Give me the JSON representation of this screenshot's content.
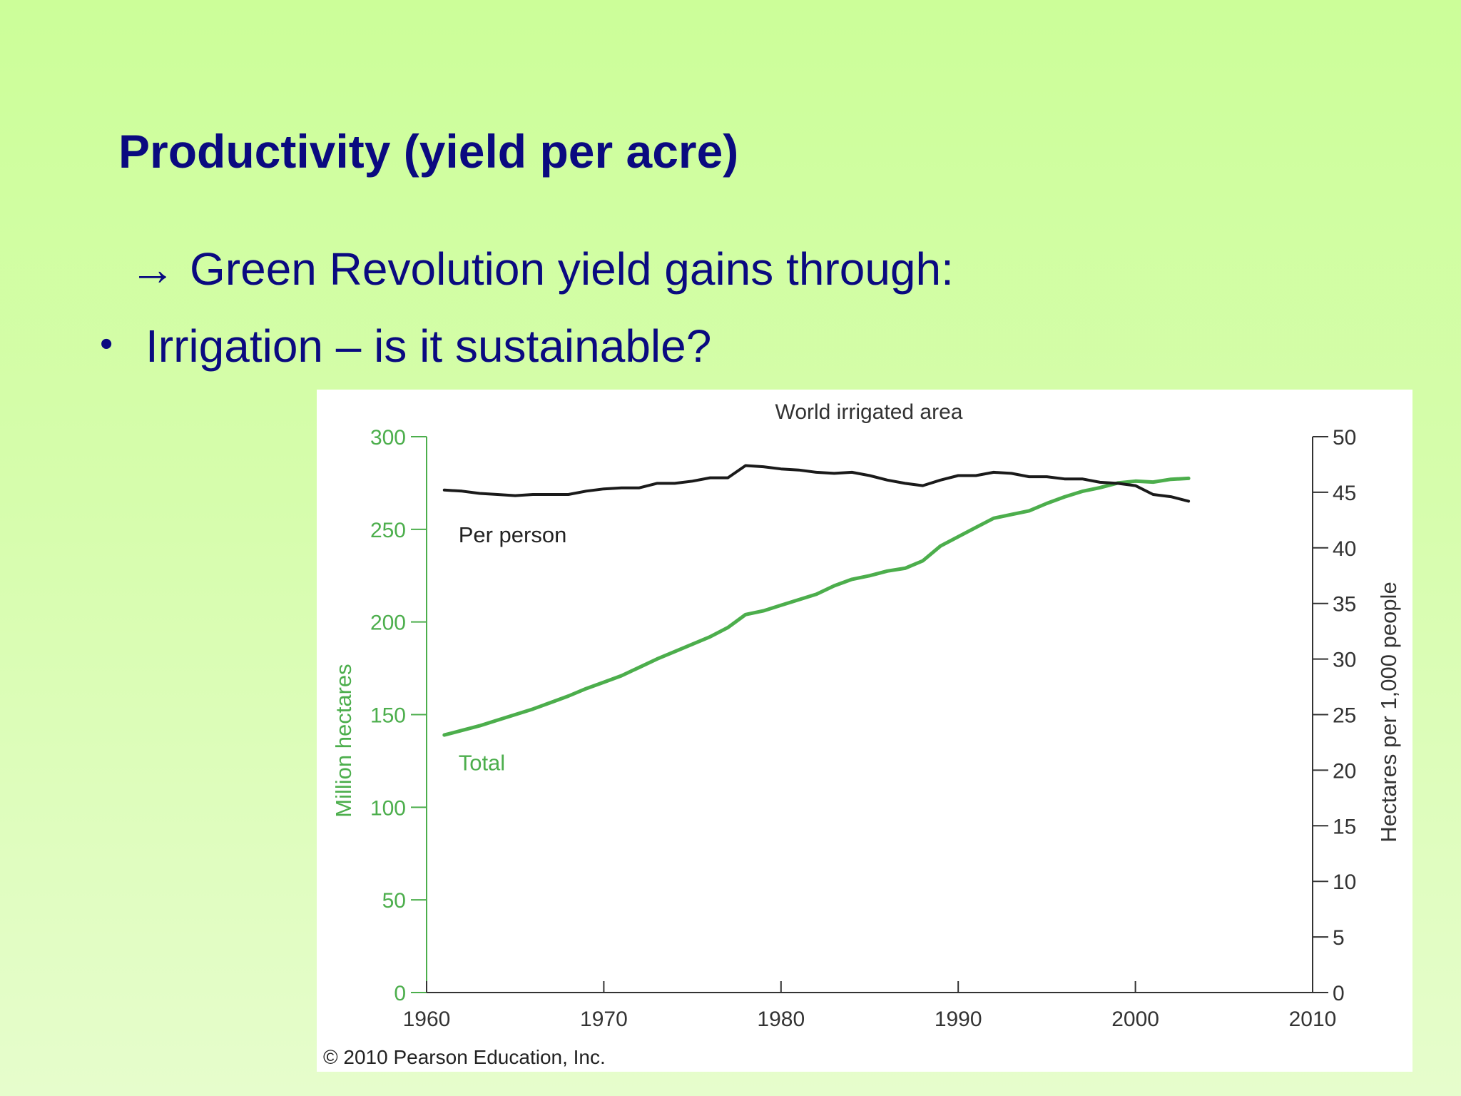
{
  "slide": {
    "title": "Productivity (yield per acre)",
    "arrow_symbol": "→",
    "arrow_text": "Green Revolution yield gains through:",
    "bullet_symbol": "•",
    "bullet_text": "Irrigation – is it sustainable?"
  },
  "chart_data": {
    "type": "line",
    "title": "World irrigated area",
    "credit": "© 2010 Pearson Education, Inc.",
    "xlim": [
      1960,
      2010
    ],
    "x_ticks": [
      1960,
      1970,
      1980,
      1990,
      2000,
      2010
    ],
    "y_left": {
      "label": "Million hectares",
      "lim": [
        0,
        300
      ],
      "ticks": [
        0,
        50,
        100,
        150,
        200,
        250,
        300
      ],
      "color": "#4cae4c"
    },
    "y_right": {
      "label": "Hectares per 1,000 people",
      "lim": [
        0,
        50
      ],
      "ticks": [
        0,
        5,
        10,
        15,
        20,
        25,
        30,
        35,
        40,
        45,
        50
      ],
      "color": "#333333"
    },
    "series": [
      {
        "name": "Total",
        "axis": "left",
        "color": "#4cae4c",
        "label_at": [
          1961.8,
          120
        ],
        "x": [
          1961,
          1962,
          1963,
          1964,
          1965,
          1966,
          1967,
          1968,
          1969,
          1970,
          1971,
          1972,
          1973,
          1974,
          1975,
          1976,
          1977,
          1978,
          1979,
          1980,
          1981,
          1982,
          1983,
          1984,
          1985,
          1986,
          1987,
          1988,
          1989,
          1990,
          1991,
          1992,
          1993,
          1994,
          1995,
          1996,
          1997,
          1998,
          1999,
          2000,
          2001,
          2002,
          2003
        ],
        "y": [
          139,
          141.5,
          144,
          147,
          150,
          153,
          156.5,
          160,
          164,
          167.5,
          171,
          175.5,
          180,
          184,
          188,
          192,
          197,
          204,
          206,
          209,
          212,
          215,
          219.5,
          223,
          225,
          227.5,
          229,
          233,
          241,
          246,
          251,
          256,
          258,
          260,
          264,
          267.5,
          270.5,
          272.5,
          275,
          276,
          275.5,
          277,
          277.5
        ]
      },
      {
        "name": "Per person",
        "axis": "right",
        "color": "#1a1a1a",
        "label_at": [
          1961.8,
          40.5
        ],
        "x": [
          1961,
          1962,
          1963,
          1964,
          1965,
          1966,
          1967,
          1968,
          1969,
          1970,
          1971,
          1972,
          1973,
          1974,
          1975,
          1976,
          1977,
          1978,
          1979,
          1980,
          1981,
          1982,
          1983,
          1984,
          1985,
          1986,
          1987,
          1988,
          1989,
          1990,
          1991,
          1992,
          1993,
          1994,
          1995,
          1996,
          1997,
          1998,
          1999,
          2000,
          2001,
          2002,
          2003
        ],
        "y": [
          45.2,
          45.1,
          44.9,
          44.8,
          44.7,
          44.8,
          44.8,
          44.8,
          45.1,
          45.3,
          45.4,
          45.4,
          45.8,
          45.8,
          46,
          46.3,
          46.3,
          47.4,
          47.3,
          47.1,
          47,
          46.8,
          46.7,
          46.8,
          46.5,
          46.1,
          45.8,
          45.6,
          46.1,
          46.5,
          46.5,
          46.8,
          46.7,
          46.4,
          46.4,
          46.2,
          46.2,
          45.9,
          45.8,
          45.6,
          44.8,
          44.6,
          44.2
        ]
      }
    ]
  }
}
